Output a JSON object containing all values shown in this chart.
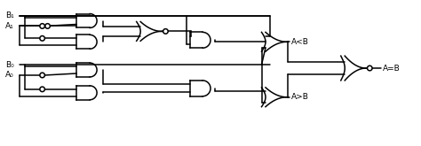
{
  "bg_color": "#ffffff",
  "line_color": "#000000",
  "line_width": 1.1,
  "font_size": 6.5,
  "labels": {
    "B1": "B₁",
    "A1": "A₁",
    "B0": "B₀",
    "A0": "A₀",
    "ALB": "A<B",
    "AEB": "A=B",
    "AGB": "A>B"
  },
  "figsize": [
    4.74,
    1.65
  ],
  "dpi": 100
}
